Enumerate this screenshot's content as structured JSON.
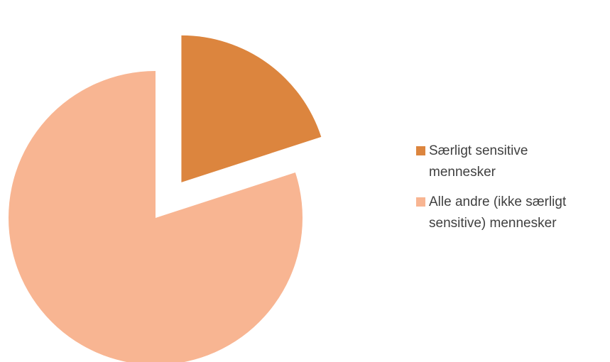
{
  "chart_data": {
    "type": "pie",
    "exploded_slice": 0,
    "slices": [
      {
        "label": "Særligt sensitive\nmennesker",
        "value": 20,
        "color": "#dc853e"
      },
      {
        "label": "Alle andre (ikke særligt\nsensitive) mennesker",
        "value": 80,
        "color": "#f8b592"
      }
    ],
    "legend_position": "right"
  }
}
